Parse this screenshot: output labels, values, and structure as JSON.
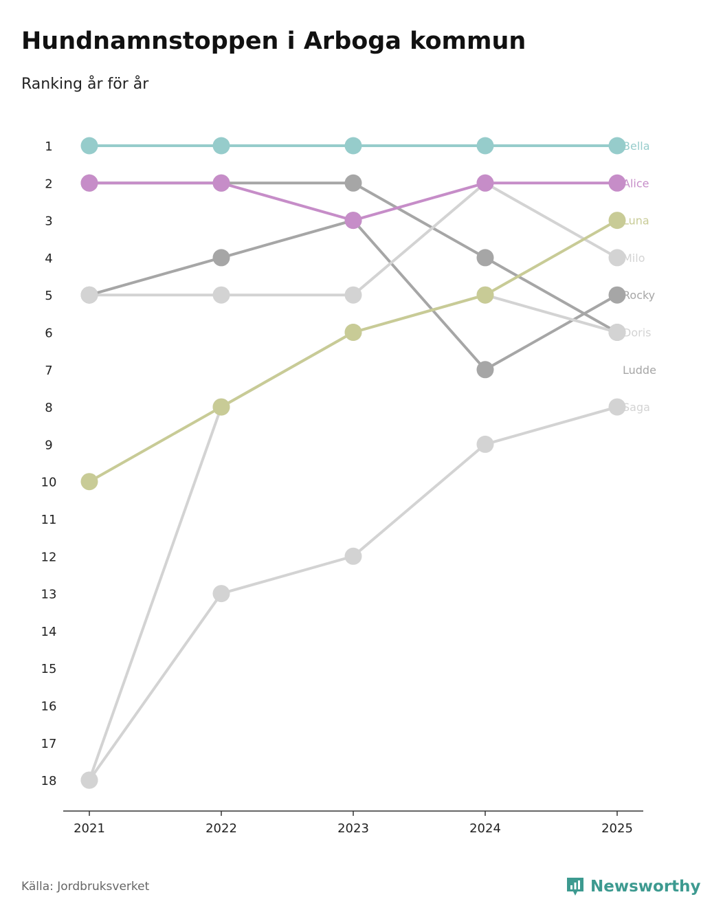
{
  "title": "Hundnamnstoppen i Arboga kommun",
  "subtitle": "Ranking år för år",
  "source": "Källa: Jordbruksverket",
  "brand": "Newsworthy",
  "icons": {
    "brand": "newsworthy-logo-icon"
  },
  "colors": {
    "axis": "#333333",
    "tick_text": "#222222",
    "brand": "#3d9a90"
  },
  "chart_data": {
    "type": "line",
    "title": "Hundnamnstoppen i Arboga kommun",
    "subtitle": "Ranking år för år",
    "xlabel": "",
    "ylabel": "",
    "x": [
      "2021",
      "2022",
      "2023",
      "2024",
      "2025"
    ],
    "y_ticks": [
      1,
      2,
      3,
      4,
      5,
      6,
      7,
      8,
      9,
      10,
      11,
      12,
      13,
      14,
      15,
      16,
      17,
      18
    ],
    "ylim": [
      1,
      18
    ],
    "y_inverted": true,
    "series": [
      {
        "name": "Ludde",
        "color": "#a6a6a6",
        "values": [
          2,
          2,
          2,
          4,
          6
        ]
      },
      {
        "name": "Rocky",
        "color": "#a6a6a6",
        "values": [
          5,
          4,
          3,
          7,
          5
        ]
      },
      {
        "name": "Milo",
        "color": "#d3d3d3",
        "values": [
          5,
          5,
          5,
          2,
          4
        ]
      },
      {
        "name": "Doris",
        "color": "#d3d3d3",
        "values": [
          18,
          8,
          6,
          5,
          6
        ]
      },
      {
        "name": "Saga",
        "color": "#d3d3d3",
        "values": [
          18,
          13,
          12,
          9,
          8
        ]
      },
      {
        "name": "Luna",
        "color": "#c8cb96",
        "values": [
          10,
          8,
          6,
          5,
          3
        ]
      },
      {
        "name": "Alice",
        "color": "#c68dc8",
        "values": [
          2,
          2,
          3,
          2,
          2
        ]
      },
      {
        "name": "Bella",
        "color": "#96cccb",
        "values": [
          1,
          1,
          1,
          1,
          1
        ]
      }
    ],
    "labels": [
      {
        "name": "Bella",
        "color": "#96cccb",
        "rank": 1
      },
      {
        "name": "Alice",
        "color": "#c68dc8",
        "rank": 2
      },
      {
        "name": "Luna",
        "color": "#c8cb96",
        "rank": 3
      },
      {
        "name": "Milo",
        "color": "#d3d3d3",
        "rank": 4
      },
      {
        "name": "Rocky",
        "color": "#a6a6a6",
        "rank": 5
      },
      {
        "name": "Doris",
        "color": "#d3d3d3",
        "rank": 6
      },
      {
        "name": "Ludde",
        "color": "#a6a6a6",
        "rank": 7
      },
      {
        "name": "Saga",
        "color": "#d3d3d3",
        "rank": 8
      }
    ]
  }
}
